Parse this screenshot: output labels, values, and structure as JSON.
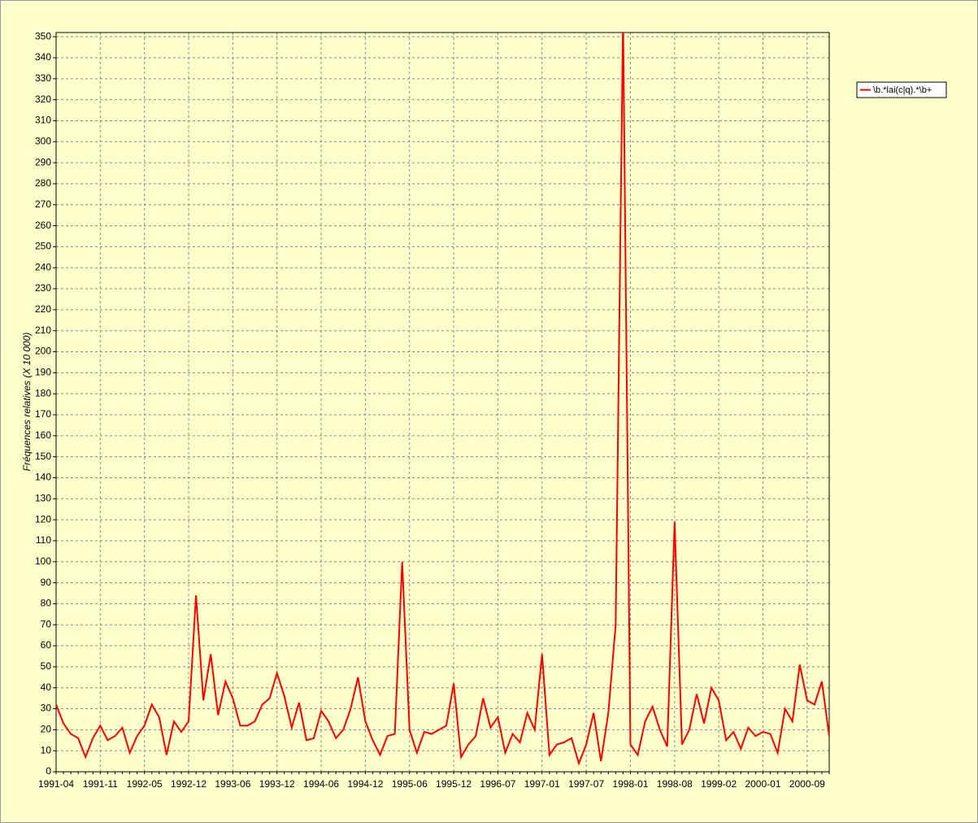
{
  "chart_data": {
    "type": "line",
    "y_label": "Fréquences relatives (X 10 000)",
    "categories": [
      "1991-04",
      null,
      null,
      null,
      null,
      null,
      "1991-11",
      null,
      null,
      null,
      null,
      null,
      "1992-05",
      null,
      null,
      null,
      null,
      null,
      "1992-12",
      null,
      null,
      null,
      null,
      null,
      "1993-06",
      null,
      null,
      null,
      null,
      null,
      "1993-12",
      null,
      null,
      null,
      null,
      null,
      "1994-06",
      null,
      null,
      null,
      null,
      null,
      "1994-12",
      null,
      null,
      null,
      null,
      null,
      "1995-06",
      null,
      null,
      null,
      null,
      null,
      "1995-12",
      null,
      null,
      null,
      null,
      null,
      "1996-07",
      null,
      null,
      null,
      null,
      null,
      "1997-01",
      null,
      null,
      null,
      null,
      null,
      "1997-07",
      null,
      null,
      null,
      null,
      null,
      "1998-01",
      null,
      null,
      null,
      null,
      null,
      "1998-08",
      null,
      null,
      null,
      null,
      null,
      "1999-02",
      null,
      null,
      null,
      null,
      null,
      "2000-01",
      null,
      null,
      null,
      null,
      null,
      "2000-09",
      null,
      null,
      null
    ],
    "series": [
      {
        "name": "\\b.*lai(c|q).*\\b+",
        "color": "#ff0000",
        "values": [
          32,
          23,
          18,
          16,
          7,
          16,
          22,
          15,
          17,
          21,
          9,
          17,
          22,
          32,
          26,
          8,
          24,
          19,
          24,
          84,
          34,
          56,
          27,
          43,
          35,
          22,
          22,
          24,
          32,
          35,
          47,
          36,
          21,
          33,
          15,
          16,
          29,
          24,
          16,
          20,
          30,
          45,
          24,
          15,
          8,
          17,
          18,
          100,
          20,
          9,
          19,
          18,
          20,
          22,
          42,
          7,
          13,
          17,
          35,
          21,
          26,
          9,
          18,
          14,
          28,
          20,
          56,
          8,
          13,
          14,
          16,
          4,
          13,
          28,
          5,
          28,
          70,
          360,
          13,
          8,
          24,
          31,
          20,
          12,
          119,
          13,
          20,
          37,
          23,
          40,
          34,
          15,
          19,
          11,
          21,
          17,
          19,
          18,
          9,
          30,
          24,
          51,
          34,
          32,
          43,
          17
        ]
      }
    ],
    "ylim": [
      0,
      352
    ],
    "yticks": [
      0,
      10,
      20,
      30,
      40,
      50,
      60,
      70,
      80,
      90,
      100,
      110,
      120,
      130,
      140,
      150,
      160,
      170,
      180,
      190,
      200,
      210,
      220,
      230,
      240,
      250,
      260,
      270,
      280,
      290,
      300,
      310,
      320,
      330,
      340,
      350
    ],
    "grid": true,
    "legend": "right"
  }
}
